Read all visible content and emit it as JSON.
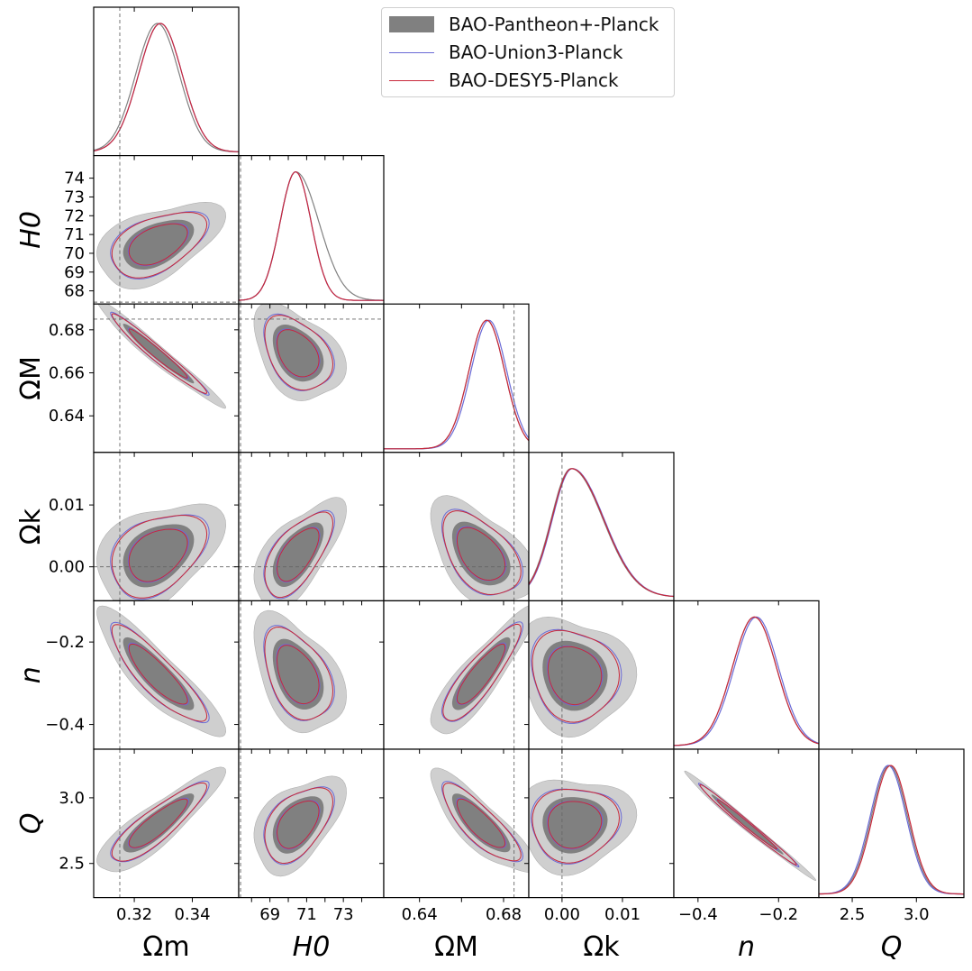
{
  "chart_data": {
    "type": "corner",
    "legend": [
      {
        "label": "BAO-Pantheon+-Planck",
        "color": "#808080",
        "style": "filled"
      },
      {
        "label": "BAO-Union3-Planck",
        "color": "#6a6ad6",
        "style": "line"
      },
      {
        "label": "BAO-DESY5-Planck",
        "color": "#c8283a",
        "style": "line"
      }
    ],
    "parameters": [
      {
        "name": "Omega_m",
        "label": "Ωm",
        "range": [
          0.306,
          0.356
        ],
        "ticks": [
          0.32,
          0.34
        ],
        "tick_labels": [
          "0.32",
          "0.34"
        ],
        "reference": 0.315,
        "mean": 0.328
      },
      {
        "name": "H0",
        "label": "H0",
        "range": [
          67.3,
          75.2
        ],
        "ticks": [
          68,
          69,
          70,
          71,
          72,
          73,
          74
        ],
        "tick_labels": [
          "68",
          "69",
          "70",
          "71",
          "72",
          "73",
          "74"
        ],
        "x_tick_labels": [
          "69",
          "71",
          "73"
        ],
        "reference": 67.4,
        "mean": 70.5
      },
      {
        "name": "Omega_M",
        "label": "ΩM",
        "range": [
          0.623,
          0.692
        ],
        "ticks": [
          0.64,
          0.66,
          0.68
        ],
        "tick_labels": [
          "0.64",
          "0.66",
          "0.68"
        ],
        "x_tick_labels": [
          "0.64",
          "0.68"
        ],
        "reference": 0.685,
        "mean": 0.669
      },
      {
        "name": "Omega_k",
        "label": "Ωk",
        "range": [
          -0.0055,
          0.0185
        ],
        "ticks": [
          0.0,
          0.01
        ],
        "tick_labels": [
          "0.00",
          "0.01"
        ],
        "reference": 0.0,
        "mean": 0.002
      },
      {
        "name": "n",
        "label": "n",
        "range": [
          -0.46,
          -0.1
        ],
        "ticks": [
          -0.4,
          -0.2
        ],
        "tick_labels": [
          "−0.4",
          "−0.2"
        ],
        "reference": null,
        "mean": -0.28
      },
      {
        "name": "Q",
        "label": "Q",
        "range": [
          2.24,
          3.37
        ],
        "ticks": [
          2.5,
          3.0
        ],
        "tick_labels": [
          "2.5",
          "3.0"
        ],
        "reference": null,
        "mean": 2.8
      }
    ],
    "marginal_peaks": {
      "Omega_m": [
        0.328,
        0.329,
        0.329
      ],
      "H0": [
        70.4,
        70.4,
        70.4
      ],
      "Omega_M": [
        0.672,
        0.673,
        0.672
      ],
      "Omega_k": [
        0.0015,
        0.0017,
        0.0016
      ],
      "n": [
        -0.26,
        -0.255,
        -0.26
      ],
      "Q": [
        2.79,
        2.78,
        2.8
      ]
    }
  }
}
